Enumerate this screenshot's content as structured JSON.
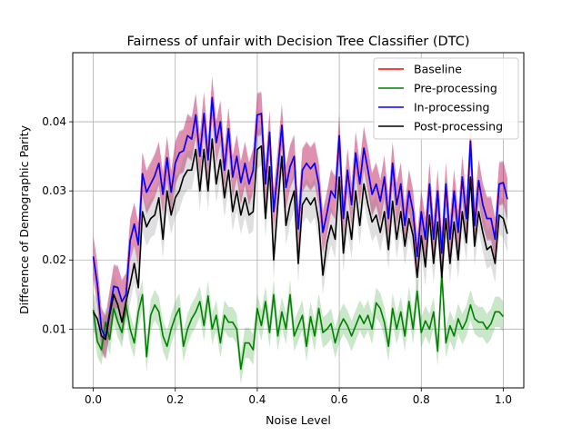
{
  "chart_data": {
    "type": "line",
    "title": "Fairness of unfair with Decision Tree Classifier (DTC)",
    "xlabel": "Noise Level",
    "ylabel": "Difference of Demographic Parity",
    "xlim": [
      -0.05,
      1.05
    ],
    "ylim": [
      0.0015,
      0.05
    ],
    "xticks": [
      0.0,
      0.2,
      0.4,
      0.6,
      0.8,
      1.0
    ],
    "xtick_labels": [
      "0.0",
      "0.2",
      "0.4",
      "0.6",
      "0.8",
      "1.0"
    ],
    "yticks": [
      0.01,
      0.02,
      0.03,
      0.04
    ],
    "ytick_labels": [
      "0.01",
      "0.02",
      "0.03",
      "0.04"
    ],
    "grid": true,
    "legend": "top-right",
    "x_start": 0.0,
    "x_step": 0.01,
    "series": [
      {
        "name": "Baseline",
        "color": "#ff0000",
        "band_color": "#ff0000",
        "band": 0.003,
        "values": [
          0.0205,
          0.0165,
          0.01,
          0.0088,
          0.0125,
          0.0162,
          0.016,
          0.014,
          0.015,
          0.0228,
          0.0252,
          0.0222,
          0.0325,
          0.0298,
          0.031,
          0.0322,
          0.034,
          0.0295,
          0.0348,
          0.0298,
          0.034,
          0.0355,
          0.0358,
          0.038,
          0.0375,
          0.041,
          0.035,
          0.0412,
          0.0345,
          0.0435,
          0.037,
          0.04,
          0.033,
          0.039,
          0.032,
          0.035,
          0.0312,
          0.034,
          0.031,
          0.033,
          0.041,
          0.0412,
          0.031,
          0.0385,
          0.027,
          0.033,
          0.0395,
          0.0305,
          0.0335,
          0.035,
          0.0245,
          0.033,
          0.034,
          0.0332,
          0.034,
          0.031,
          0.024,
          0.0268,
          0.03,
          0.029,
          0.038,
          0.026,
          0.033,
          0.028,
          0.0355,
          0.031,
          0.0362,
          0.033,
          0.0295,
          0.031,
          0.0285,
          0.032,
          0.026,
          0.034,
          0.028,
          0.031,
          0.025,
          0.03,
          0.027,
          0.0205,
          0.027,
          0.023,
          0.031,
          0.023,
          0.03,
          0.021,
          0.031,
          0.023,
          0.03,
          0.024,
          0.032,
          0.026,
          0.0372,
          0.025,
          0.0315,
          0.028,
          0.026,
          0.026,
          0.023,
          0.031,
          0.0312,
          0.0288
        ]
      },
      {
        "name": "Pre-processing",
        "color": "#008000",
        "band_color": "#2ca02c",
        "band": 0.0022,
        "values": [
          0.0128,
          0.0082,
          0.007,
          0.011,
          0.0085,
          0.013,
          0.011,
          0.0095,
          0.0135,
          0.01,
          0.008,
          0.0125,
          0.015,
          0.006,
          0.012,
          0.0135,
          0.0125,
          0.009,
          0.0075,
          0.01,
          0.0118,
          0.013,
          0.0075,
          0.01,
          0.0115,
          0.0125,
          0.014,
          0.0105,
          0.0148,
          0.01,
          0.012,
          0.008,
          0.012,
          0.011,
          0.011,
          0.01,
          0.0042,
          0.008,
          0.008,
          0.007,
          0.013,
          0.0105,
          0.014,
          0.0095,
          0.015,
          0.009,
          0.0125,
          0.01,
          0.015,
          0.009,
          0.0105,
          0.012,
          0.0075,
          0.0118,
          0.009,
          0.013,
          0.0095,
          0.01,
          0.0108,
          0.008,
          0.0102,
          0.0115,
          0.0105,
          0.009,
          0.0105,
          0.012,
          0.0108,
          0.012,
          0.01,
          0.0138,
          0.013,
          0.011,
          0.0075,
          0.013,
          0.01,
          0.0125,
          0.009,
          0.014,
          0.01,
          0.0155,
          0.0095,
          0.0112,
          0.01,
          0.0125,
          0.0068,
          0.018,
          0.008,
          0.0105,
          0.009,
          0.0115,
          0.01,
          0.0112,
          0.0135,
          0.0115,
          0.011,
          0.011,
          0.01,
          0.0108,
          0.0125,
          0.0125,
          0.0118
        ]
      },
      {
        "name": "In-processing",
        "color": "#0000ff",
        "band_color": "#800080",
        "band": 0.0032,
        "values": [
          0.0205,
          0.0165,
          0.01,
          0.0088,
          0.0125,
          0.0162,
          0.016,
          0.014,
          0.015,
          0.0228,
          0.0252,
          0.0222,
          0.0325,
          0.0298,
          0.031,
          0.0322,
          0.034,
          0.0295,
          0.0348,
          0.0298,
          0.034,
          0.0355,
          0.0358,
          0.038,
          0.0375,
          0.041,
          0.035,
          0.0412,
          0.0345,
          0.0435,
          0.037,
          0.04,
          0.033,
          0.039,
          0.032,
          0.035,
          0.0312,
          0.034,
          0.031,
          0.033,
          0.041,
          0.0412,
          0.031,
          0.0385,
          0.027,
          0.033,
          0.0395,
          0.0305,
          0.0335,
          0.035,
          0.0245,
          0.033,
          0.034,
          0.0332,
          0.034,
          0.031,
          0.024,
          0.0268,
          0.03,
          0.029,
          0.038,
          0.026,
          0.033,
          0.028,
          0.0355,
          0.031,
          0.0362,
          0.033,
          0.0295,
          0.031,
          0.0285,
          0.032,
          0.026,
          0.034,
          0.028,
          0.031,
          0.025,
          0.03,
          0.027,
          0.0205,
          0.027,
          0.023,
          0.031,
          0.023,
          0.03,
          0.021,
          0.031,
          0.023,
          0.03,
          0.024,
          0.032,
          0.026,
          0.0372,
          0.025,
          0.0315,
          0.028,
          0.026,
          0.026,
          0.023,
          0.031,
          0.0312,
          0.0288
        ]
      },
      {
        "name": "Post-processing",
        "color": "#000000",
        "band_color": "#808080",
        "band": 0.0028,
        "values": [
          0.0125,
          0.0115,
          0.009,
          0.0085,
          0.012,
          0.015,
          0.0135,
          0.011,
          0.014,
          0.0165,
          0.0195,
          0.016,
          0.027,
          0.0248,
          0.026,
          0.0265,
          0.029,
          0.023,
          0.03,
          0.0265,
          0.029,
          0.03,
          0.032,
          0.033,
          0.033,
          0.036,
          0.03,
          0.036,
          0.03,
          0.0375,
          0.031,
          0.0345,
          0.029,
          0.033,
          0.027,
          0.03,
          0.0265,
          0.029,
          0.0265,
          0.027,
          0.036,
          0.0365,
          0.026,
          0.0335,
          0.02,
          0.028,
          0.035,
          0.025,
          0.028,
          0.03,
          0.0195,
          0.028,
          0.029,
          0.028,
          0.029,
          0.0255,
          0.0178,
          0.0225,
          0.025,
          0.023,
          0.032,
          0.021,
          0.027,
          0.023,
          0.03,
          0.025,
          0.031,
          0.028,
          0.0255,
          0.0265,
          0.024,
          0.027,
          0.0215,
          0.0285,
          0.023,
          0.027,
          0.022,
          0.026,
          0.0235,
          0.0175,
          0.0235,
          0.019,
          0.0265,
          0.0195,
          0.0255,
          0.0175,
          0.026,
          0.0195,
          0.0255,
          0.02,
          0.027,
          0.0225,
          0.032,
          0.022,
          0.027,
          0.024,
          0.0215,
          0.022,
          0.0195,
          0.0265,
          0.026,
          0.0238
        ]
      }
    ]
  }
}
